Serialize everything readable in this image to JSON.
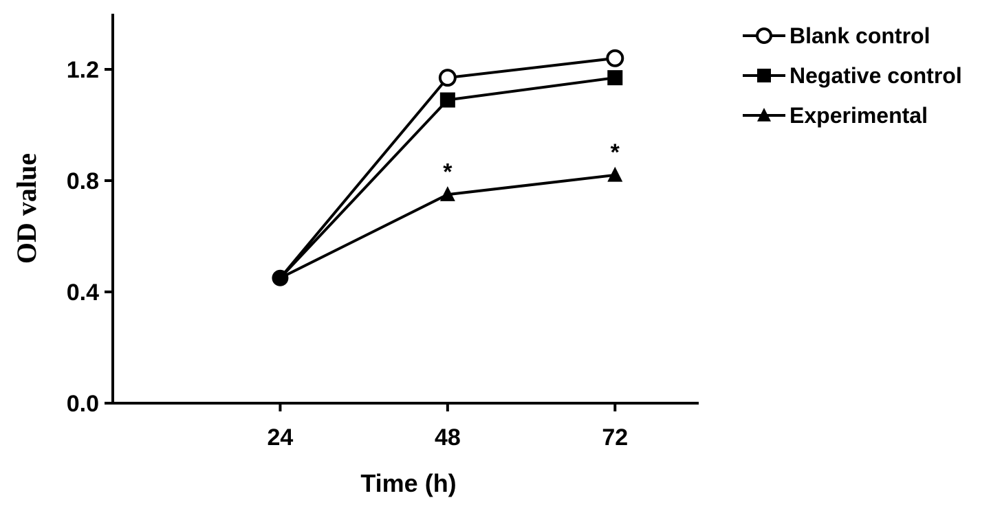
{
  "chart_data": {
    "type": "line",
    "x": [
      24,
      48,
      72
    ],
    "xlabel": "Time (h)",
    "ylabel": "OD value",
    "ylim": [
      0.0,
      1.4
    ],
    "y_ticks": [
      "0.0",
      "0.4",
      "0.8",
      "1.2"
    ],
    "x_ticks": [
      "24",
      "48",
      "72"
    ],
    "grid": false,
    "legend_position": "top-right",
    "series": [
      {
        "name": "Blank control",
        "marker": "open-circle",
        "values": [
          0.45,
          1.17,
          1.24
        ]
      },
      {
        "name": "Negative control",
        "marker": "filled-square",
        "values": [
          0.45,
          1.09,
          1.17
        ]
      },
      {
        "name": "Experimental",
        "marker": "filled-triangle",
        "values": [
          0.45,
          0.75,
          0.82
        ]
      }
    ],
    "annotations": [
      {
        "text": "*",
        "x": 48,
        "y": 0.75
      },
      {
        "text": "*",
        "x": 72,
        "y": 0.82
      }
    ]
  }
}
